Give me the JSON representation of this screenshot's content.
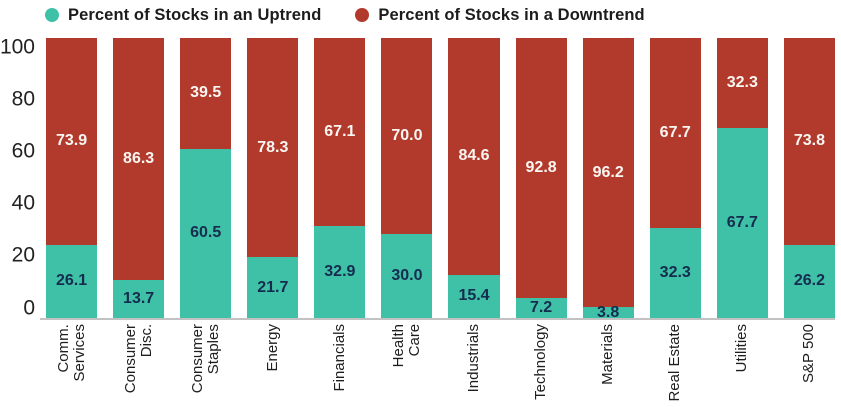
{
  "legend": {
    "items": [
      {
        "label": "Percent of Stocks in an Uptrend"
      },
      {
        "label": "Percent of Stocks in a Downtrend"
      }
    ]
  },
  "colors": {
    "uptrend": "#3fc1a7",
    "downtrend": "#b23a2c",
    "uptrend_label_text": "#152c4e",
    "downtrend_label_text": "#ffffff",
    "axis_line": "#c2c2c2"
  },
  "chart_data": {
    "type": "bar",
    "stacked": true,
    "title": "",
    "xlabel": "",
    "ylabel": "",
    "ylim": [
      0,
      100
    ],
    "y_ticks": [
      0,
      20,
      40,
      60,
      80,
      100
    ],
    "grid": false,
    "legend_position": "top",
    "categories": [
      "Comm.\nServices",
      "Consumer\nDisc.",
      "Consumer\nStaples",
      "Energy",
      "Financials",
      "Health\nCare",
      "Industrials",
      "Technology",
      "Materials",
      "Real Estate",
      "Utilities",
      "S&P 500"
    ],
    "series": [
      {
        "name": "Percent of Stocks in an Uptrend",
        "color": "#3fc1a7",
        "values": [
          26.1,
          13.7,
          60.5,
          21.7,
          32.9,
          30.0,
          15.4,
          7.2,
          3.8,
          32.3,
          67.7,
          26.2
        ]
      },
      {
        "name": "Percent of Stocks in a Downtrend",
        "color": "#b23a2c",
        "values": [
          73.9,
          86.3,
          39.5,
          78.3,
          67.1,
          70.0,
          84.6,
          92.8,
          96.2,
          67.7,
          32.3,
          73.8
        ]
      }
    ]
  }
}
